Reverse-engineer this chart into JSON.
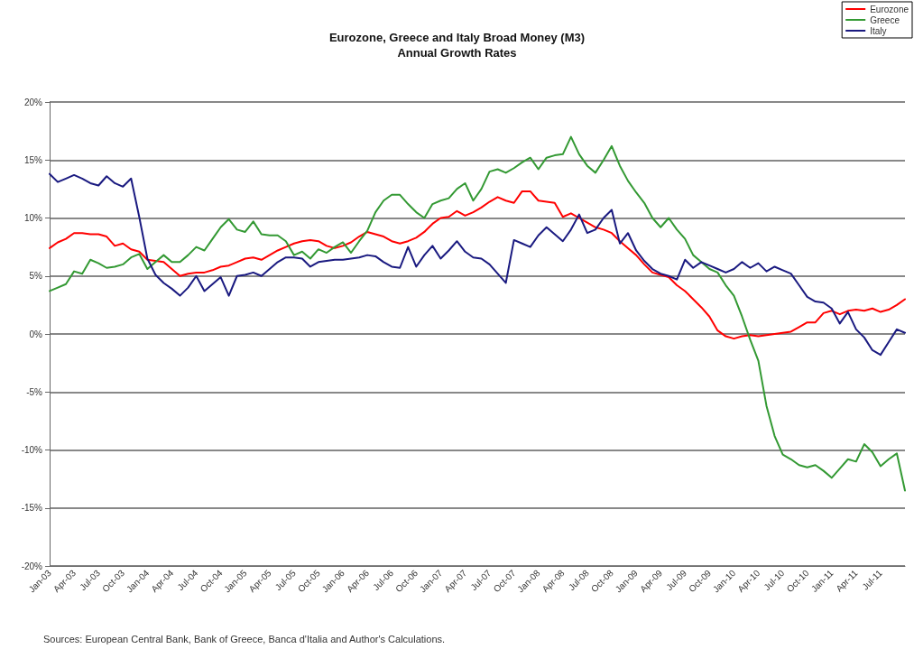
{
  "chart_data": {
    "type": "line",
    "title": "Eurozone, Greece and Italy Broad Money (M3)\nAnnual Growth Rates",
    "categories": [
      "Jan-03",
      null,
      null,
      "Apr-03",
      null,
      null,
      "Jul-03",
      null,
      null,
      "Oct-03",
      null,
      null,
      "Jan-04",
      null,
      null,
      "Apr-04",
      null,
      null,
      "Jul-04",
      null,
      null,
      "Oct-04",
      null,
      null,
      "Jan-05",
      null,
      null,
      "Apr-05",
      null,
      null,
      "Jul-05",
      null,
      null,
      "Oct-05",
      null,
      null,
      "Jan-06",
      null,
      null,
      "Apr-06",
      null,
      null,
      "Jul-06",
      null,
      null,
      "Oct-06",
      null,
      null,
      "Jan-07",
      null,
      null,
      "Apr-07",
      null,
      null,
      "Jul-07",
      null,
      null,
      "Oct-07",
      null,
      null,
      "Jan-08",
      null,
      null,
      "Apr-08",
      null,
      null,
      "Jul-08",
      null,
      null,
      "Oct-08",
      null,
      null,
      "Jan-09",
      null,
      null,
      "Apr-09",
      null,
      null,
      "Jul-09",
      null,
      null,
      "Oct-09",
      null,
      null,
      "Jan-10",
      null,
      null,
      "Apr-10",
      null,
      null,
      "Jul-10",
      null,
      null,
      "Oct-10",
      null,
      null,
      "Jan-11",
      null,
      null,
      "Apr-11",
      null,
      null,
      "Jul-11",
      null,
      null,
      null
    ],
    "series": [
      {
        "name": "Eurozone",
        "color": "#ff0000",
        "values": [
          7.4,
          7.9,
          8.2,
          8.7,
          8.7,
          8.6,
          8.6,
          8.4,
          7.6,
          7.8,
          7.3,
          7.1,
          6.4,
          6.3,
          6.2,
          5.6,
          5.0,
          5.2,
          5.3,
          5.3,
          5.5,
          5.8,
          5.9,
          6.2,
          6.5,
          6.6,
          6.4,
          6.8,
          7.2,
          7.5,
          7.8,
          8.0,
          8.1,
          8.0,
          7.6,
          7.4,
          7.6,
          7.9,
          8.4,
          8.8,
          8.6,
          8.4,
          8.0,
          7.8,
          8.0,
          8.3,
          8.8,
          9.5,
          10.0,
          10.1,
          10.6,
          10.2,
          10.5,
          10.9,
          11.4,
          11.8,
          11.5,
          11.3,
          12.3,
          12.3,
          11.5,
          11.4,
          11.3,
          10.1,
          10.4,
          10.0,
          9.6,
          9.2,
          9.0,
          8.7,
          8.0,
          7.4,
          6.8,
          6.0,
          5.3,
          5.1,
          4.9,
          4.2,
          3.7,
          3.0,
          2.3,
          1.5,
          0.3,
          -0.2,
          -0.4,
          -0.2,
          -0.1,
          -0.2,
          -0.1,
          0.0,
          0.1,
          0.2,
          0.6,
          1.0,
          1.0,
          1.8,
          2.0,
          1.7,
          2.0,
          2.1,
          2.0,
          2.2,
          1.9,
          2.1,
          2.5,
          3.0
        ]
      },
      {
        "name": "Greece",
        "color": "#339933",
        "values": [
          3.7,
          4.0,
          4.3,
          5.4,
          5.2,
          6.4,
          6.1,
          5.7,
          5.8,
          6.0,
          6.6,
          6.9,
          5.6,
          6.2,
          6.8,
          6.2,
          6.2,
          6.8,
          7.5,
          7.2,
          8.2,
          9.2,
          9.9,
          9.0,
          8.8,
          9.7,
          8.6,
          8.5,
          8.5,
          8.0,
          6.8,
          7.1,
          6.5,
          7.3,
          7.0,
          7.5,
          7.9,
          7.0,
          8.0,
          8.9,
          10.5,
          11.5,
          12.0,
          12.0,
          11.2,
          10.5,
          10.0,
          11.2,
          11.5,
          11.7,
          12.5,
          13.0,
          11.5,
          12.5,
          14.0,
          14.2,
          13.9,
          14.3,
          14.8,
          15.2,
          14.2,
          15.2,
          15.4,
          15.5,
          17.0,
          15.5,
          14.5,
          13.9,
          15.0,
          16.2,
          14.5,
          13.2,
          12.2,
          11.3,
          10.0,
          9.2,
          10.0,
          9.0,
          8.2,
          6.8,
          6.2,
          5.6,
          5.3,
          4.2,
          3.3,
          1.5,
          -0.5,
          -2.3,
          -6.2,
          -8.8,
          -10.4,
          -10.8,
          -11.3,
          -11.5,
          -11.3,
          -11.8,
          -12.4,
          -11.6,
          -10.8,
          -11.0,
          -9.5,
          -10.2,
          -11.4,
          -10.8,
          -10.3,
          -13.5
        ]
      },
      {
        "name": "Italy",
        "color": "#1a1a80",
        "values": [
          13.8,
          13.1,
          13.4,
          13.7,
          13.4,
          13.0,
          12.8,
          13.6,
          13.0,
          12.7,
          13.4,
          10.1,
          6.5,
          5.1,
          4.4,
          3.9,
          3.3,
          4.0,
          5.0,
          3.7,
          4.3,
          4.9,
          3.3,
          5.0,
          5.1,
          5.3,
          5.0,
          5.6,
          6.2,
          6.6,
          6.6,
          6.5,
          5.8,
          6.2,
          6.3,
          6.4,
          6.4,
          6.5,
          6.6,
          6.8,
          6.7,
          6.2,
          5.8,
          5.7,
          7.5,
          5.8,
          6.8,
          7.6,
          6.5,
          7.2,
          8.0,
          7.1,
          6.6,
          6.5,
          6.0,
          5.2,
          4.4,
          8.1,
          7.8,
          7.5,
          8.5,
          9.2,
          8.6,
          8.0,
          9.0,
          10.3,
          8.7,
          9.0,
          10.0,
          10.7,
          7.8,
          8.7,
          7.2,
          6.3,
          5.6,
          5.2,
          5.0,
          4.7,
          6.4,
          5.7,
          6.2,
          5.9,
          5.6,
          5.3,
          5.6,
          6.2,
          5.7,
          6.1,
          5.4,
          5.8,
          5.5,
          5.2,
          4.2,
          3.2,
          2.8,
          2.7,
          2.2,
          0.9,
          1.9,
          0.4,
          -0.3,
          -1.4,
          -1.8,
          -0.7,
          0.4,
          0.1
        ]
      }
    ],
    "ylim": [
      -20,
      20
    ],
    "yticks": [
      {
        "value": -20,
        "label": "-20%"
      },
      {
        "value": -15,
        "label": "-15%"
      },
      {
        "value": -10,
        "label": "-10%"
      },
      {
        "value": -5,
        "label": "-5%"
      },
      {
        "value": 0,
        "label": "0%"
      },
      {
        "value": 5,
        "label": "5%"
      },
      {
        "value": 10,
        "label": "10%"
      },
      {
        "value": 15,
        "label": "15%"
      },
      {
        "value": 20,
        "label": "20%"
      }
    ],
    "grid": "y",
    "legend": "top right",
    "marker": "none",
    "line_style": "solid",
    "annotations": [
      "Sources: European Central Bank, Bank of Greece, Banca d'Italia and Author's Calculations."
    ]
  }
}
